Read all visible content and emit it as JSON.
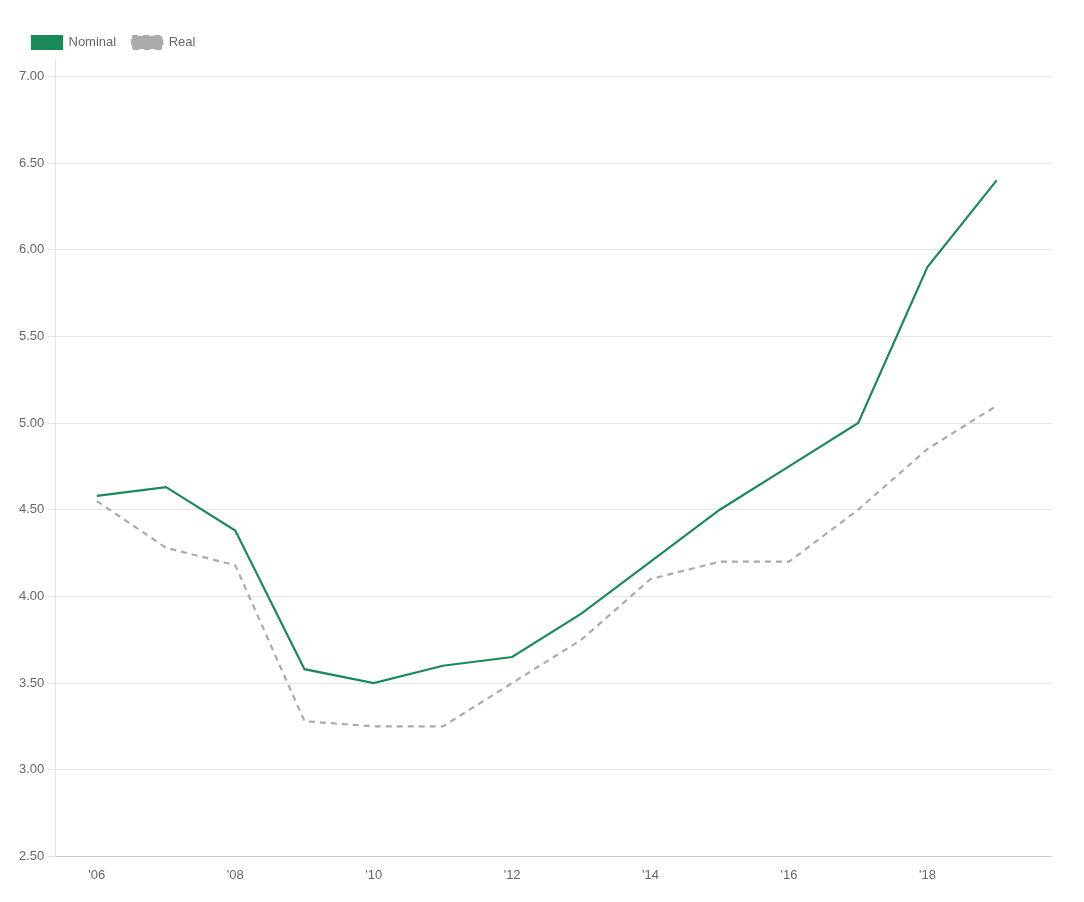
{
  "chart_data": {
    "type": "line",
    "x": [
      2006,
      2007,
      2008,
      2009,
      2010,
      2011,
      2012,
      2013,
      2014,
      2015,
      2016,
      2017,
      2018,
      2019
    ],
    "series": [
      {
        "name": "Nominal",
        "color": "#1a8a5a",
        "line_style": "solid",
        "values": [
          4.58,
          4.63,
          4.38,
          3.58,
          3.5,
          3.6,
          3.65,
          3.9,
          4.2,
          4.5,
          4.75,
          5.0,
          5.9,
          6.4
        ]
      },
      {
        "name": "Real",
        "color": "#aaaaaa",
        "line_style": "dashed",
        "values": [
          4.55,
          4.28,
          4.18,
          3.28,
          3.25,
          3.25,
          3.5,
          3.75,
          4.1,
          4.2,
          4.2,
          4.5,
          4.85,
          5.1
        ]
      }
    ],
    "xlim": [
      2005.4,
      2019.8
    ],
    "xticks": [
      {
        "value": 2006,
        "label": "'06"
      },
      {
        "value": 2008,
        "label": "'08"
      },
      {
        "value": 2010,
        "label": "'10"
      },
      {
        "value": 2012,
        "label": "'12"
      },
      {
        "value": 2014,
        "label": "'14"
      },
      {
        "value": 2016,
        "label": "'16"
      },
      {
        "value": 2018,
        "label": "'18"
      }
    ],
    "ylim": [
      2.5,
      7.1
    ],
    "yticks": [
      {
        "value": 2.5,
        "label": "2.50"
      },
      {
        "value": 3.0,
        "label": "3.00"
      },
      {
        "value": 3.5,
        "label": "3.50"
      },
      {
        "value": 4.0,
        "label": "4.00"
      },
      {
        "value": 4.5,
        "label": "4.50"
      },
      {
        "value": 5.0,
        "label": "5.00"
      },
      {
        "value": 5.5,
        "label": "5.50"
      },
      {
        "value": 6.0,
        "label": "6.00"
      },
      {
        "value": 6.5,
        "label": "6.50"
      },
      {
        "value": 7.0,
        "label": "7.00"
      }
    ],
    "grid": "y",
    "legend": "upper left"
  }
}
